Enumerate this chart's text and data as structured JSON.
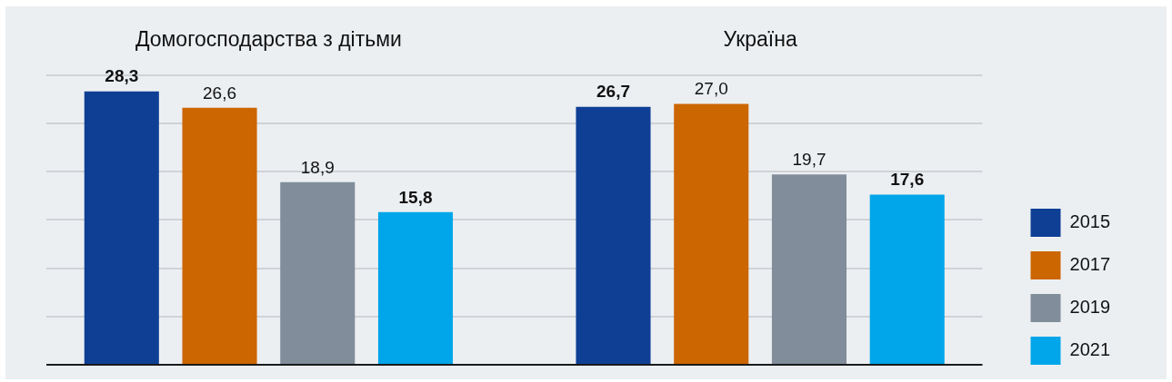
{
  "chart_data": {
    "type": "bar",
    "categories": [
      "Домогосподарства з дітьми",
      "Україна"
    ],
    "series": [
      {
        "name": "2015",
        "color": "#0f3f95",
        "values": [
          28.3,
          26.7
        ],
        "value_labels": [
          "28,3",
          "26,7"
        ]
      },
      {
        "name": "2017",
        "color": "#cc6600",
        "values": [
          26.6,
          27.0
        ],
        "value_labels": [
          "26,6",
          "27,0"
        ]
      },
      {
        "name": "2019",
        "color": "#818d9a",
        "values": [
          18.9,
          19.7
        ],
        "value_labels": [
          "18,9",
          "19,7"
        ]
      },
      {
        "name": "2021",
        "color": "#00a6e9",
        "values": [
          15.8,
          17.6
        ],
        "value_labels": [
          "15,8",
          "17,6"
        ]
      }
    ],
    "ylim": [
      0,
      30
    ],
    "yticks": [
      {
        "value": 0,
        "label": null
      },
      {
        "value": 5,
        "label": null
      },
      {
        "value": 10,
        "label": null
      },
      {
        "value": 15,
        "label": null
      },
      {
        "value": 20,
        "label": null
      },
      {
        "value": 25,
        "label": null
      },
      {
        "value": 30,
        "label": null
      }
    ],
    "grid": "y",
    "legend": "right",
    "tick_labels": "x"
  }
}
